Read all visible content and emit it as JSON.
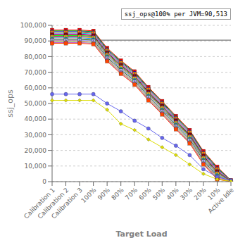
{
  "chart_data": {
    "type": "line",
    "xlabel": "Target Load",
    "ylabel": "ssj_ops",
    "annotations": [
      "ssj_ops@100% per JVM=90,513"
    ],
    "categories": [
      "Calibration 1",
      "Calibration 2",
      "Calibration 3",
      "100%",
      "90%",
      "80%",
      "70%",
      "60%",
      "50%",
      "40%",
      "30%",
      "20%",
      "10%",
      "Active Idle"
    ],
    "series": [
      {
        "color": "#FF0000",
        "marker": "square",
        "values": [
          97000,
          97000,
          97000,
          96500,
          85500,
          77500,
          70500,
          60500,
          51500,
          42000,
          33000,
          19500,
          9500,
          900
        ]
      },
      {
        "color": "#00BB00",
        "marker": "triangle",
        "values": [
          96500,
          96500,
          96500,
          96000,
          85000,
          77000,
          70000,
          60000,
          51000,
          41500,
          32500,
          19000,
          9000,
          800
        ]
      },
      {
        "color": "#0000EE",
        "marker": "circle",
        "values": [
          96000,
          96000,
          96000,
          95500,
          84500,
          76500,
          69500,
          59500,
          50500,
          41000,
          32000,
          18500,
          8500,
          700
        ]
      },
      {
        "color": "#FF8800",
        "marker": "square",
        "values": [
          95500,
          95500,
          95500,
          95000,
          84000,
          76000,
          69000,
          59000,
          50000,
          40500,
          31500,
          18000,
          8000,
          600
        ]
      },
      {
        "color": "#00CCCC",
        "marker": "triangle",
        "values": [
          95000,
          95000,
          95000,
          94500,
          83500,
          75500,
          68500,
          58500,
          49500,
          40000,
          31000,
          17500,
          7500,
          500
        ]
      },
      {
        "color": "#FF00FF",
        "marker": "diamond",
        "values": [
          94500,
          94500,
          94500,
          94000,
          83000,
          75000,
          68000,
          58000,
          49000,
          39500,
          30500,
          17000,
          7000,
          400
        ]
      },
      {
        "color": "#880000",
        "marker": "square",
        "values": [
          94000,
          94000,
          94000,
          93500,
          82500,
          74500,
          67500,
          57500,
          48500,
          39000,
          30000,
          16500,
          6500,
          300
        ]
      },
      {
        "color": "#00FF00",
        "marker": "triangle",
        "values": [
          93500,
          93500,
          93500,
          93000,
          82000,
          74000,
          67000,
          57000,
          48000,
          38500,
          29500,
          16000,
          6000,
          200
        ]
      },
      {
        "color": "#8800BB",
        "marker": "circle",
        "values": [
          93000,
          93000,
          93000,
          92500,
          81500,
          73500,
          66500,
          56500,
          47500,
          38000,
          29000,
          15500,
          5500,
          150
        ]
      },
      {
        "color": "#FFBB00",
        "marker": "square",
        "values": [
          92500,
          92500,
          92500,
          92000,
          81000,
          73000,
          66000,
          56000,
          47000,
          37500,
          28500,
          15000,
          5000,
          120
        ]
      },
      {
        "color": "#00AAFF",
        "marker": "diamond",
        "values": [
          92000,
          92000,
          92000,
          91500,
          80500,
          72500,
          65500,
          55500,
          46500,
          37000,
          28000,
          14500,
          4500,
          100
        ]
      },
      {
        "color": "#FF88BB",
        "marker": "triangle",
        "values": [
          91500,
          91500,
          91500,
          91000,
          80000,
          72000,
          65000,
          55000,
          46000,
          36500,
          27500,
          14000,
          4000,
          80
        ]
      },
      {
        "color": "#008800",
        "marker": "circle",
        "values": [
          91000,
          91000,
          91000,
          90500,
          79500,
          71500,
          64500,
          54500,
          45500,
          36000,
          27000,
          13500,
          3500,
          60
        ]
      },
      {
        "color": "#AAAAFF",
        "marker": "square",
        "values": [
          90500,
          90500,
          90500,
          90000,
          79000,
          71000,
          64000,
          54000,
          45000,
          35500,
          26500,
          13000,
          3000,
          50
        ]
      },
      {
        "color": "#FF6666",
        "marker": "triangle",
        "values": [
          90000,
          90000,
          90000,
          89500,
          78500,
          70500,
          63500,
          53500,
          44500,
          35000,
          26000,
          12500,
          2500,
          40
        ]
      },
      {
        "color": "#66FF66",
        "marker": "diamond",
        "values": [
          89500,
          89500,
          89500,
          89000,
          78000,
          70000,
          63000,
          53000,
          44000,
          34500,
          25500,
          12000,
          2000,
          30
        ]
      },
      {
        "color": "#CC44CC",
        "marker": "circle",
        "values": [
          89000,
          89000,
          89000,
          88500,
          77500,
          69500,
          62500,
          52500,
          43500,
          34000,
          25000,
          11500,
          1800,
          20
        ]
      },
      {
        "color": "#FF4400",
        "marker": "square",
        "values": [
          88500,
          88500,
          88500,
          88000,
          77000,
          69000,
          62000,
          52000,
          43000,
          33500,
          24500,
          11000,
          1500,
          10
        ]
      },
      {
        "color": "#6666EE",
        "marker": "circle",
        "values": [
          56000,
          56000,
          56000,
          56000,
          50000,
          45000,
          39000,
          34000,
          28000,
          23000,
          17000,
          8000,
          3000,
          800
        ]
      },
      {
        "color": "#DDDD00",
        "marker": "diamond",
        "values": [
          52000,
          52000,
          52000,
          52000,
          46000,
          37000,
          33000,
          27000,
          22000,
          17000,
          11000,
          5000,
          1500,
          200
        ]
      }
    ],
    "reference_line": {
      "y": 90513,
      "color": "#555555"
    },
    "ylim": [
      0,
      100000
    ],
    "yticks": [
      0,
      {
        "value": 10000,
        "label": "10,000"
      },
      {
        "value": 20000,
        "label": "20,000"
      },
      {
        "value": 30000,
        "label": "30,000"
      },
      {
        "value": 40000,
        "label": "40,000"
      },
      {
        "value": 50000,
        "label": "50,000"
      },
      {
        "value": 60000,
        "label": "60,000"
      },
      {
        "value": 70000,
        "label": "70,000"
      },
      {
        "value": 80000,
        "label": "80,000"
      },
      {
        "value": 90000,
        "label": "90,000"
      },
      {
        "value": 100000,
        "label": "100,000"
      }
    ],
    "grid": "y"
  }
}
